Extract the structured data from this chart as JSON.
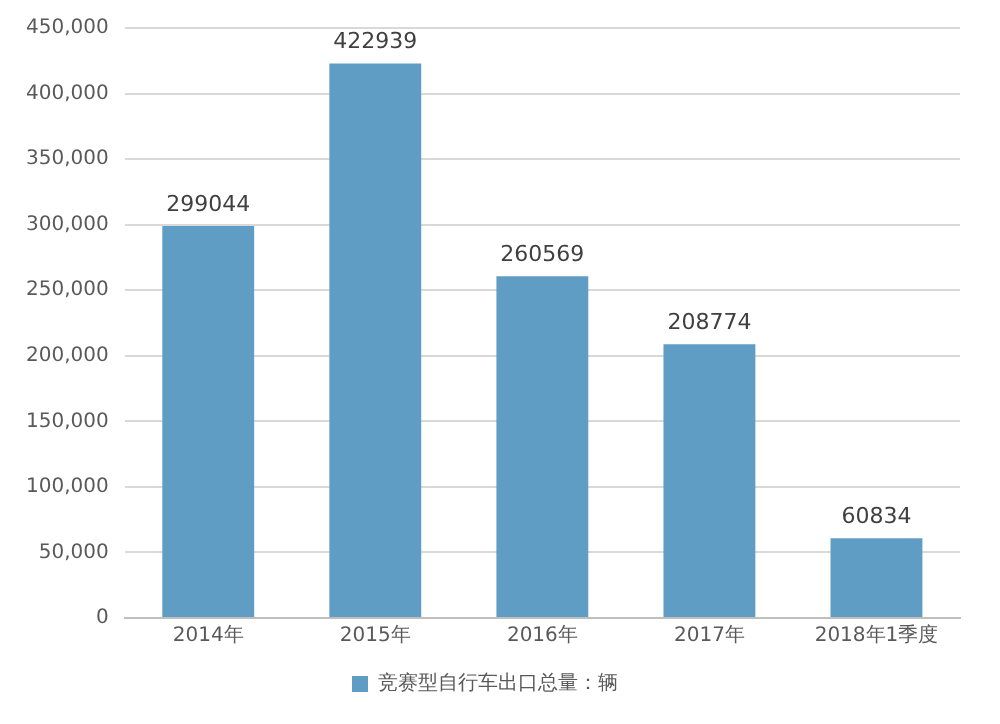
{
  "chart_data": {
    "type": "bar",
    "categories": [
      "2014年",
      "2015年",
      "2016年",
      "2017年",
      "2018年1季度"
    ],
    "series": [
      {
        "name": "竞赛型自行车出口总量：辆",
        "color": "#5f9dc4",
        "values": [
          299044,
          422939,
          260569,
          208774,
          60834
        ]
      }
    ],
    "ylim": [
      0,
      450000
    ],
    "yticks": [
      {
        "value": 0,
        "label": "0"
      },
      {
        "value": 50000,
        "label": "50,000"
      },
      {
        "value": 100000,
        "label": "100,000"
      },
      {
        "value": 150000,
        "label": "150,000"
      },
      {
        "value": 200000,
        "label": "200,000"
      },
      {
        "value": 250000,
        "label": "250,000"
      },
      {
        "value": 300000,
        "label": "300,000"
      },
      {
        "value": 350000,
        "label": "350,000"
      },
      {
        "value": 400000,
        "label": "400,000"
      },
      {
        "value": 450000,
        "label": "450,000"
      }
    ],
    "grid": "y",
    "legend": "bottom",
    "data_labels": true
  }
}
